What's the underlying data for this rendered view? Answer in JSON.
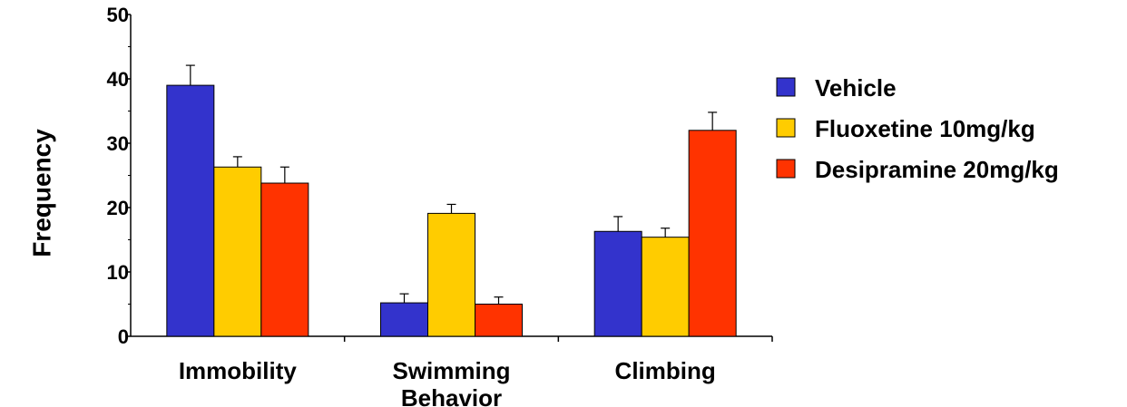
{
  "chart_data": {
    "type": "bar",
    "title": "",
    "ylabel": "Frequency",
    "xlabel": "",
    "ylim": [
      0,
      50
    ],
    "yticks": [
      0,
      10,
      20,
      30,
      40,
      50
    ],
    "categories": [
      [
        "Immobility"
      ],
      [
        "Swimming",
        "Behavior"
      ],
      [
        "Climbing"
      ]
    ],
    "series": [
      {
        "name": "Vehicle",
        "color": "#3333cc",
        "values": [
          39,
          5.2,
          16.3
        ],
        "errors": [
          3.1,
          1.4,
          2.3
        ]
      },
      {
        "name": "Fluoxetine 10mg/kg",
        "color": "#ffcc00",
        "values": [
          26.3,
          19.1,
          15.4
        ],
        "errors": [
          1.6,
          1.4,
          1.4
        ]
      },
      {
        "name": "Desipramine 20mg/kg",
        "color": "#ff3300",
        "values": [
          23.8,
          5,
          32
        ],
        "errors": [
          2.5,
          1.1,
          2.8
        ]
      }
    ],
    "legend_position": "right",
    "grid": false,
    "error_bars": true
  }
}
